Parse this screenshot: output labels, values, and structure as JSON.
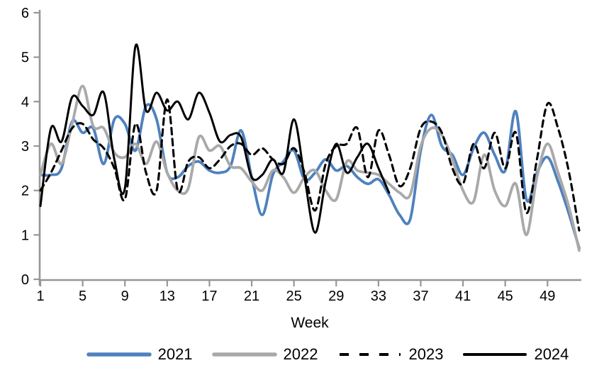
{
  "chart_data": {
    "type": "line",
    "title": "",
    "xlabel": "Week",
    "ylabel": "",
    "ylim": [
      0,
      6
    ],
    "x_range": [
      1,
      52
    ],
    "y_ticks": [
      0,
      1,
      2,
      3,
      4,
      5,
      6
    ],
    "x_ticks": [
      1,
      5,
      9,
      13,
      17,
      21,
      25,
      29,
      33,
      37,
      41,
      45,
      49
    ],
    "grid": false,
    "legend_position": "bottom",
    "colors": {
      "axis": "#969696",
      "text": "#000000",
      "background": "#ffffff"
    },
    "series": [
      {
        "name": "2021",
        "color": "#4F81BD",
        "style": "solid",
        "width": 3.8,
        "start_week": 1,
        "values": [
          2.35,
          2.35,
          2.5,
          3.55,
          3.3,
          3.4,
          2.6,
          3.6,
          3.5,
          2.9,
          3.9,
          3.6,
          2.4,
          2.3,
          2.55,
          2.65,
          2.45,
          2.4,
          2.55,
          3.35,
          2.3,
          1.45,
          2.35,
          2.65,
          2.9,
          2.25,
          2.4,
          2.7,
          2.45,
          2.55,
          2.3,
          2.15,
          2.25,
          1.9,
          1.45,
          1.35,
          2.9,
          3.7,
          3.0,
          2.8,
          2.35,
          2.95,
          3.3,
          2.8,
          2.45,
          3.78,
          1.8,
          2.4,
          2.75,
          2.2,
          1.5,
          0.7
        ]
      },
      {
        "name": "2022",
        "color": "#A9A9A9",
        "style": "solid",
        "width": 3.8,
        "start_week": 1,
        "values": [
          2.35,
          3.05,
          2.6,
          3.5,
          4.35,
          3.45,
          3.4,
          2.85,
          2.75,
          3.05,
          2.6,
          3.1,
          2.4,
          2.0,
          2.05,
          3.2,
          2.9,
          3.0,
          2.55,
          2.5,
          2.2,
          2.0,
          2.45,
          2.3,
          1.95,
          2.3,
          2.45,
          2.0,
          1.8,
          2.65,
          2.45,
          2.4,
          2.35,
          2.15,
          1.95,
          1.9,
          3.0,
          3.4,
          3.25,
          2.7,
          2.0,
          1.75,
          2.8,
          2.0,
          1.65,
          2.15,
          1.0,
          2.3,
          3.05,
          2.4,
          1.65,
          0.65
        ]
      },
      {
        "name": "2023",
        "color": "#000000",
        "style": "dashed",
        "width": 3.1,
        "start_week": 1,
        "values": [
          2.0,
          2.4,
          2.9,
          3.4,
          3.5,
          3.15,
          2.95,
          2.5,
          1.8,
          3.5,
          2.4,
          2.0,
          4.05,
          2.0,
          2.65,
          2.75,
          2.5,
          2.7,
          3.0,
          3.05,
          2.8,
          2.95,
          2.7,
          2.6,
          2.95,
          2.4,
          1.55,
          2.6,
          3.0,
          3.05,
          3.4,
          2.3,
          3.35,
          2.8,
          2.1,
          2.5,
          3.4,
          3.55,
          3.3,
          2.5,
          2.15,
          3.05,
          2.5,
          3.3,
          2.5,
          3.3,
          1.5,
          2.7,
          3.95,
          3.4,
          2.45,
          1.1
        ]
      },
      {
        "name": "2024",
        "color": "#000000",
        "style": "solid",
        "width": 3.0,
        "start_week": 1,
        "values": [
          1.65,
          3.4,
          3.1,
          4.1,
          3.9,
          3.7,
          4.2,
          2.7,
          2.05,
          5.25,
          3.8,
          4.2,
          3.8,
          4.0,
          3.6,
          4.2,
          3.75,
          3.1,
          3.25,
          3.2,
          2.3,
          2.35,
          2.7,
          2.4,
          3.6,
          2.3,
          1.05,
          2.2,
          3.05,
          2.4,
          2.75,
          3.05,
          2.5,
          1.95
        ]
      }
    ]
  }
}
